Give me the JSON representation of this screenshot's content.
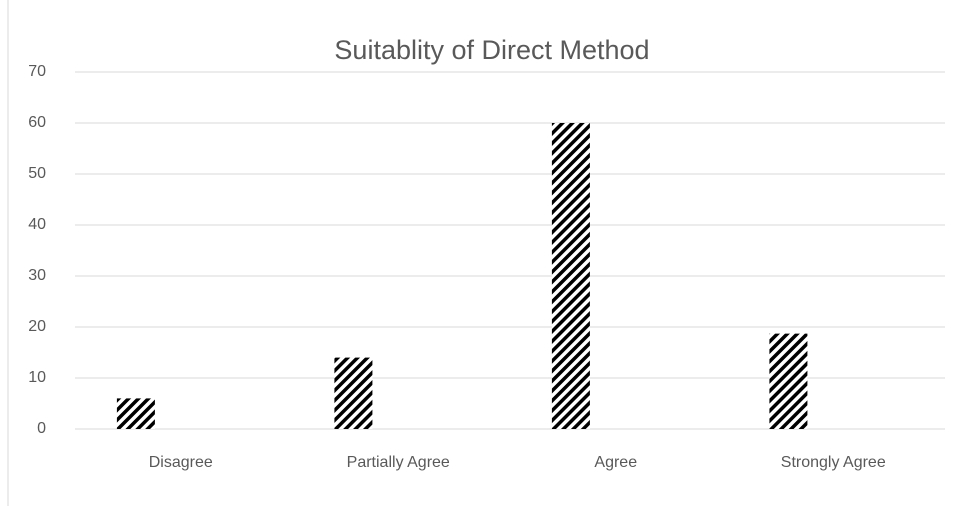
{
  "chart_data": {
    "type": "bar",
    "title": "Suitablity of Direct Method",
    "categories": [
      "Disagree",
      "Partially Agree",
      "Agree",
      "Strongly Agree"
    ],
    "values": [
      6,
      14,
      60,
      18.7
    ],
    "color": "#000000",
    "ylim": [
      0,
      70
    ],
    "yticks": [
      0,
      10,
      20,
      30,
      40,
      50,
      60,
      70
    ],
    "grid": true
  }
}
